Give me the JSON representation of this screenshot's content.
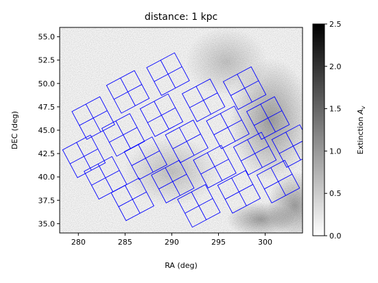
{
  "chart_data": {
    "type": "heatmap",
    "title": "distance: 1 kpc",
    "xlabel": "RA (deg)",
    "ylabel": "DEC (deg)",
    "xlim": [
      278.0,
      304.0
    ],
    "ylim": [
      34.0,
      56.0
    ],
    "xticks": [
      280,
      285,
      290,
      295,
      300
    ],
    "xtick_labels": [
      "280",
      "285",
      "290",
      "295",
      "300"
    ],
    "yticks": [
      35.0,
      37.5,
      40.0,
      42.5,
      45.0,
      47.5,
      50.0,
      52.5,
      55.0
    ],
    "ytick_labels": [
      "35.0",
      "37.5",
      "40.0",
      "42.5",
      "45.0",
      "47.5",
      "50.0",
      "52.5",
      "55.0"
    ],
    "grid": false,
    "colormap": "gray_r",
    "colorbar": {
      "label": "Extinction A_v",
      "label_main": "Extinction ",
      "label_symbol": "A",
      "label_subscript": "v",
      "range": [
        0.0,
        2.5
      ],
      "ticks": [
        0.0,
        0.5,
        1.0,
        1.5,
        2.0,
        2.5
      ],
      "tick_labels": [
        "0.0",
        "0.5",
        "1.0",
        "1.5",
        "2.0",
        "2.5"
      ]
    },
    "overlay": {
      "description": "Kepler field-of-view CCD module footprints",
      "color": "#0000ff",
      "modules": [
        {
          "center": [
            281.6,
            46.3
          ],
          "angle": 28
        },
        {
          "center": [
            285.3,
            49.1
          ],
          "angle": 28
        },
        {
          "center": [
            289.6,
            51.0
          ],
          "angle": 28
        },
        {
          "center": [
            280.6,
            42.2
          ],
          "angle": 28
        },
        {
          "center": [
            284.8,
            44.5
          ],
          "angle": 28
        },
        {
          "center": [
            288.9,
            46.6
          ],
          "angle": 28
        },
        {
          "center": [
            293.4,
            48.2
          ],
          "angle": 28
        },
        {
          "center": [
            297.8,
            49.5
          ],
          "angle": 28
        },
        {
          "center": [
            282.9,
            39.9
          ],
          "angle": 28
        },
        {
          "center": [
            287.2,
            42.0
          ],
          "angle": 28
        },
        {
          "center": [
            291.6,
            43.8
          ],
          "angle": 28
        },
        {
          "center": [
            296.0,
            45.3
          ],
          "angle": 28
        },
        {
          "center": [
            300.3,
            46.3
          ],
          "angle": 28
        },
        {
          "center": [
            285.8,
            37.6
          ],
          "angle": 28
        },
        {
          "center": [
            290.1,
            39.5
          ],
          "angle": 28
        },
        {
          "center": [
            294.6,
            41.1
          ],
          "angle": 28
        },
        {
          "center": [
            298.9,
            42.5
          ],
          "angle": 28
        },
        {
          "center": [
            303.0,
            43.3
          ],
          "angle": 28
        },
        {
          "center": [
            292.9,
            36.9
          ],
          "angle": 28
        },
        {
          "center": [
            297.2,
            38.4
          ],
          "angle": 28
        },
        {
          "center": [
            301.4,
            39.5
          ],
          "angle": 28
        }
      ]
    }
  }
}
